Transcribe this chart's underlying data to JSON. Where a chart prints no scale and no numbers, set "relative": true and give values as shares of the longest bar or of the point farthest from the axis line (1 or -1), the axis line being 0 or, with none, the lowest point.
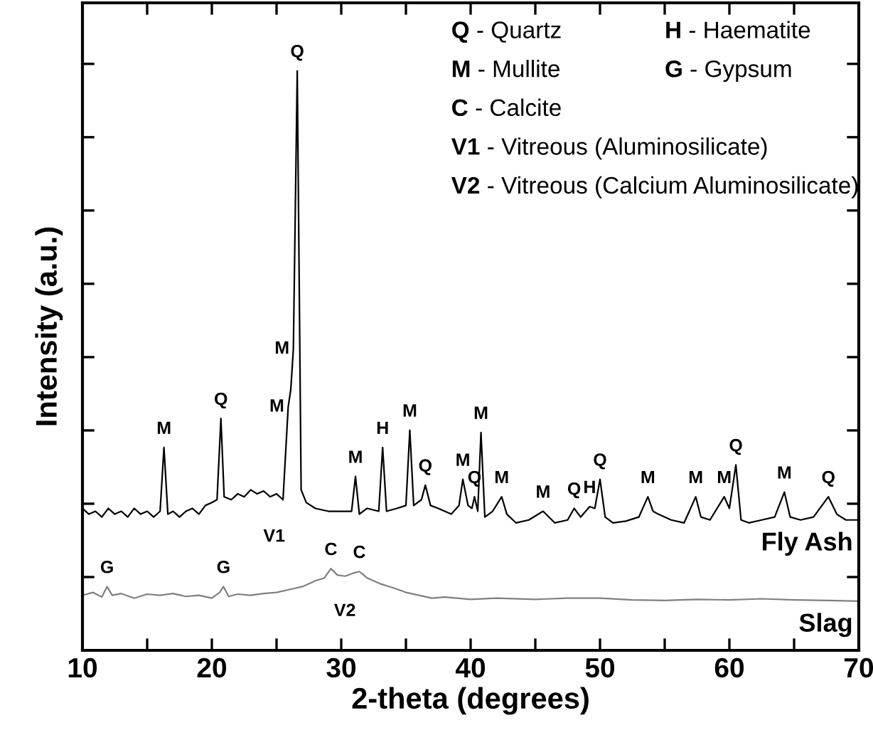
{
  "chart_data": {
    "type": "line",
    "relative": true,
    "xlabel": "2-theta (degrees)",
    "ylabel": "Intensity (a.u.)",
    "xlim": [
      10,
      70
    ],
    "xticks": [
      10,
      {
        "value": 15,
        "label": null
      },
      20,
      {
        "value": 25,
        "label": null
      },
      30,
      {
        "value": 35,
        "label": null
      },
      40,
      {
        "value": 45,
        "label": null
      },
      50,
      {
        "value": 55,
        "label": null
      },
      60,
      {
        "value": 65,
        "label": null
      },
      70
    ],
    "tick_labels": "x",
    "grid": false,
    "legend": "right",
    "marker": "none",
    "line_style": "solid",
    "series": [
      {
        "name": "Fly Ash",
        "color": "#000000",
        "x": [
          10,
          10.5,
          11,
          11.5,
          12,
          12.5,
          13,
          13.5,
          14,
          14.5,
          15,
          15.5,
          16,
          16.3,
          16.6,
          17,
          17.5,
          18,
          18.5,
          19,
          19.5,
          20,
          20.4,
          20.7,
          20.95,
          21.5,
          22,
          22.5,
          23,
          23.5,
          24,
          24.5,
          25,
          25.5,
          25.9,
          26.1,
          26.3,
          26.6,
          26.9,
          27.3,
          28,
          29,
          30,
          30.8,
          31.1,
          31.4,
          32,
          32.9,
          33.2,
          33.5,
          34.3,
          35.0,
          35.3,
          35.6,
          36.2,
          36.5,
          36.9,
          37.5,
          38.5,
          39.1,
          39.4,
          39.8,
          40.1,
          40.3,
          40.55,
          40.8,
          41.1,
          41.7,
          42.4,
          42.8,
          43.5,
          44.5,
          45.6,
          46.5,
          47.5,
          48.0,
          48.5,
          49.2,
          49.6,
          50.0,
          50.4,
          51,
          52,
          53,
          53.7,
          54.1,
          54.5,
          55.5,
          56.5,
          57.4,
          57.8,
          58.5,
          59.6,
          60.0,
          60.5,
          60.9,
          61.5,
          62.5,
          63.5,
          64.25,
          64.7,
          65.5,
          66.5,
          67.65,
          68.3,
          69,
          70
        ],
        "values": [
          0.245,
          0.235,
          0.24,
          0.23,
          0.245,
          0.235,
          0.24,
          0.23,
          0.245,
          0.235,
          0.24,
          0.23,
          0.24,
          0.35,
          0.235,
          0.24,
          0.23,
          0.24,
          0.245,
          0.235,
          0.25,
          0.255,
          0.26,
          0.4,
          0.265,
          0.26,
          0.27,
          0.265,
          0.277,
          0.27,
          0.275,
          0.265,
          0.27,
          0.26,
          0.42,
          0.45,
          0.52,
          1.0,
          0.277,
          0.255,
          0.245,
          0.24,
          0.24,
          0.24,
          0.3,
          0.235,
          0.245,
          0.24,
          0.35,
          0.24,
          0.245,
          0.25,
          0.38,
          0.25,
          0.26,
          0.285,
          0.25,
          0.245,
          0.235,
          0.25,
          0.295,
          0.25,
          0.245,
          0.265,
          0.24,
          0.376,
          0.23,
          0.24,
          0.265,
          0.235,
          0.22,
          0.225,
          0.24,
          0.22,
          0.225,
          0.245,
          0.23,
          0.248,
          0.245,
          0.295,
          0.23,
          0.22,
          0.223,
          0.23,
          0.265,
          0.24,
          0.235,
          0.225,
          0.22,
          0.265,
          0.23,
          0.225,
          0.265,
          0.245,
          0.32,
          0.225,
          0.22,
          0.225,
          0.23,
          0.273,
          0.23,
          0.225,
          0.23,
          0.265,
          0.235,
          0.225,
          0.225
        ]
      },
      {
        "name": "Slag",
        "color": "#808080",
        "x": [
          10,
          10.8,
          11.5,
          11.9,
          12.3,
          13,
          14,
          15,
          16,
          17,
          18,
          19,
          20,
          20.6,
          20.9,
          21.3,
          22,
          23,
          24,
          25,
          26,
          27,
          28,
          28.7,
          29.2,
          29.7,
          30.3,
          30.9,
          31.4,
          32,
          33,
          34,
          35,
          36,
          37,
          38,
          40,
          42,
          45,
          47.5,
          50,
          52.5,
          55,
          57.5,
          60,
          62.5,
          65,
          67.5,
          70
        ],
        "values": [
          0.095,
          0.1,
          0.092,
          0.11,
          0.095,
          0.098,
          0.09,
          0.097,
          0.095,
          0.098,
          0.093,
          0.095,
          0.09,
          0.1,
          0.11,
          0.093,
          0.097,
          0.095,
          0.098,
          0.1,
          0.105,
          0.11,
          0.12,
          0.125,
          0.141,
          0.13,
          0.128,
          0.133,
          0.136,
          0.125,
          0.115,
          0.108,
          0.1,
          0.095,
          0.09,
          0.092,
          0.088,
          0.09,
          0.088,
          0.09,
          0.09,
          0.087,
          0.086,
          0.088,
          0.087,
          0.089,
          0.087,
          0.086,
          0.085
        ]
      }
    ],
    "annotations": [
      "Q - Quartz",
      "H - Haematite",
      "M - Mullite",
      "G - Gypsum",
      "C - Calcite",
      "V1 - Vitreous (Aluminosilicate)",
      "V2 - Vitreous (Calcium Aluminosilicate)",
      {
        "text": "M",
        "x": 16.3,
        "y": 0.35
      },
      {
        "text": "Q",
        "x": 20.7,
        "y": 0.4
      },
      {
        "text": "M",
        "x": 25.9,
        "y": 0.42
      },
      {
        "text": "M",
        "x": 26.3,
        "y": 0.52
      },
      {
        "text": "Q",
        "x": 26.6,
        "y": 1.0
      },
      {
        "text": "M",
        "x": 31.1,
        "y": 0.3
      },
      {
        "text": "H",
        "x": 33.2,
        "y": 0.35
      },
      {
        "text": "M",
        "x": 35.3,
        "y": 0.38
      },
      {
        "text": "Q",
        "x": 36.5,
        "y": 0.285
      },
      {
        "text": "M",
        "x": 39.4,
        "y": 0.295
      },
      {
        "text": "Q",
        "x": 40.3,
        "y": 0.265
      },
      {
        "text": "M",
        "x": 40.8,
        "y": 0.376
      },
      {
        "text": "M",
        "x": 42.4,
        "y": 0.265
      },
      {
        "text": "M",
        "x": 45.6,
        "y": 0.24
      },
      {
        "text": "Q",
        "x": 48.0,
        "y": 0.245
      },
      {
        "text": "H",
        "x": 49.2,
        "y": 0.248
      },
      {
        "text": "Q",
        "x": 50.0,
        "y": 0.295
      },
      {
        "text": "M",
        "x": 53.7,
        "y": 0.265
      },
      {
        "text": "M",
        "x": 57.4,
        "y": 0.265
      },
      {
        "text": "M",
        "x": 59.6,
        "y": 0.265
      },
      {
        "text": "Q",
        "x": 60.5,
        "y": 0.32
      },
      {
        "text": "M",
        "x": 64.25,
        "y": 0.273
      },
      {
        "text": "Q",
        "x": 67.65,
        "y": 0.265
      },
      {
        "text": "G",
        "x": 11.9,
        "y": 0.11
      },
      {
        "text": "G",
        "x": 20.9,
        "y": 0.11
      },
      {
        "text": "C",
        "x": 29.2,
        "y": 0.141
      },
      {
        "text": "C",
        "x": 31.4,
        "y": 0.136
      },
      "V1",
      "V2"
    ]
  }
}
